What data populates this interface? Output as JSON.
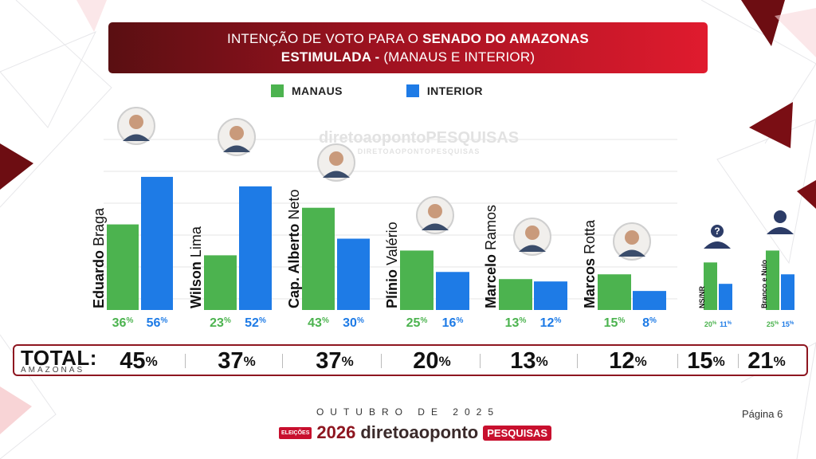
{
  "header": {
    "line1_normal": "INTENÇÃO DE VOTO PARA O ",
    "line1_bold": "SENADO DO AMAZONAS",
    "line2_bold": "ESTIMULADA -",
    "line2_normal": " (MANAUS E INTERIOR)"
  },
  "legend": {
    "manaus": "MANAUS",
    "interior": "INTERIOR"
  },
  "watermark": {
    "brand": "diretoaopontoPESQUISAS",
    "sub": "DIRETOAOPONTOPESQUISAS"
  },
  "colors": {
    "manaus": "#4cb34f",
    "interior": "#1e7be6",
    "accent": "#8e1620",
    "header_start": "#5a0f12",
    "header_end": "#e01b2e"
  },
  "chart_data": {
    "type": "bar",
    "categories": [
      {
        "first": "Eduardo",
        "rest": "Braga"
      },
      {
        "first": "Wilson",
        "rest": "Lima"
      },
      {
        "first": "Cap. Alberto",
        "rest": "Neto"
      },
      {
        "first": "Plínio",
        "rest": "Valério"
      },
      {
        "first": "Marcelo",
        "rest": "Ramos"
      },
      {
        "first": "Marcos",
        "rest": "Rotta"
      },
      {
        "first": "NS/NR",
        "rest": ""
      },
      {
        "first": "Branco e Nulo",
        "rest": ""
      }
    ],
    "series": [
      {
        "name": "MANAUS",
        "values": [
          36,
          23,
          43,
          25,
          13,
          15,
          20,
          25
        ]
      },
      {
        "name": "INTERIOR",
        "values": [
          56,
          52,
          30,
          16,
          12,
          8,
          11,
          15
        ]
      }
    ],
    "ylim": [
      0,
      60
    ],
    "value_suffix": "%",
    "grid": true,
    "legend_position": "top"
  },
  "total": {
    "label": "TOTAL:",
    "sublabel": "AMAZONAS",
    "values": [
      "45",
      "37",
      "37",
      "20",
      "13",
      "12",
      "15",
      "21"
    ],
    "suffix": "%"
  },
  "footer": {
    "month": "OUTUBRO DE 2025",
    "page": "Página 6",
    "logo_eleicoes": "ELEIÇÕES",
    "logo_year": "2026",
    "logo_brand": "diretoaoponto",
    "logo_pesquisas": "PESQUISAS"
  }
}
